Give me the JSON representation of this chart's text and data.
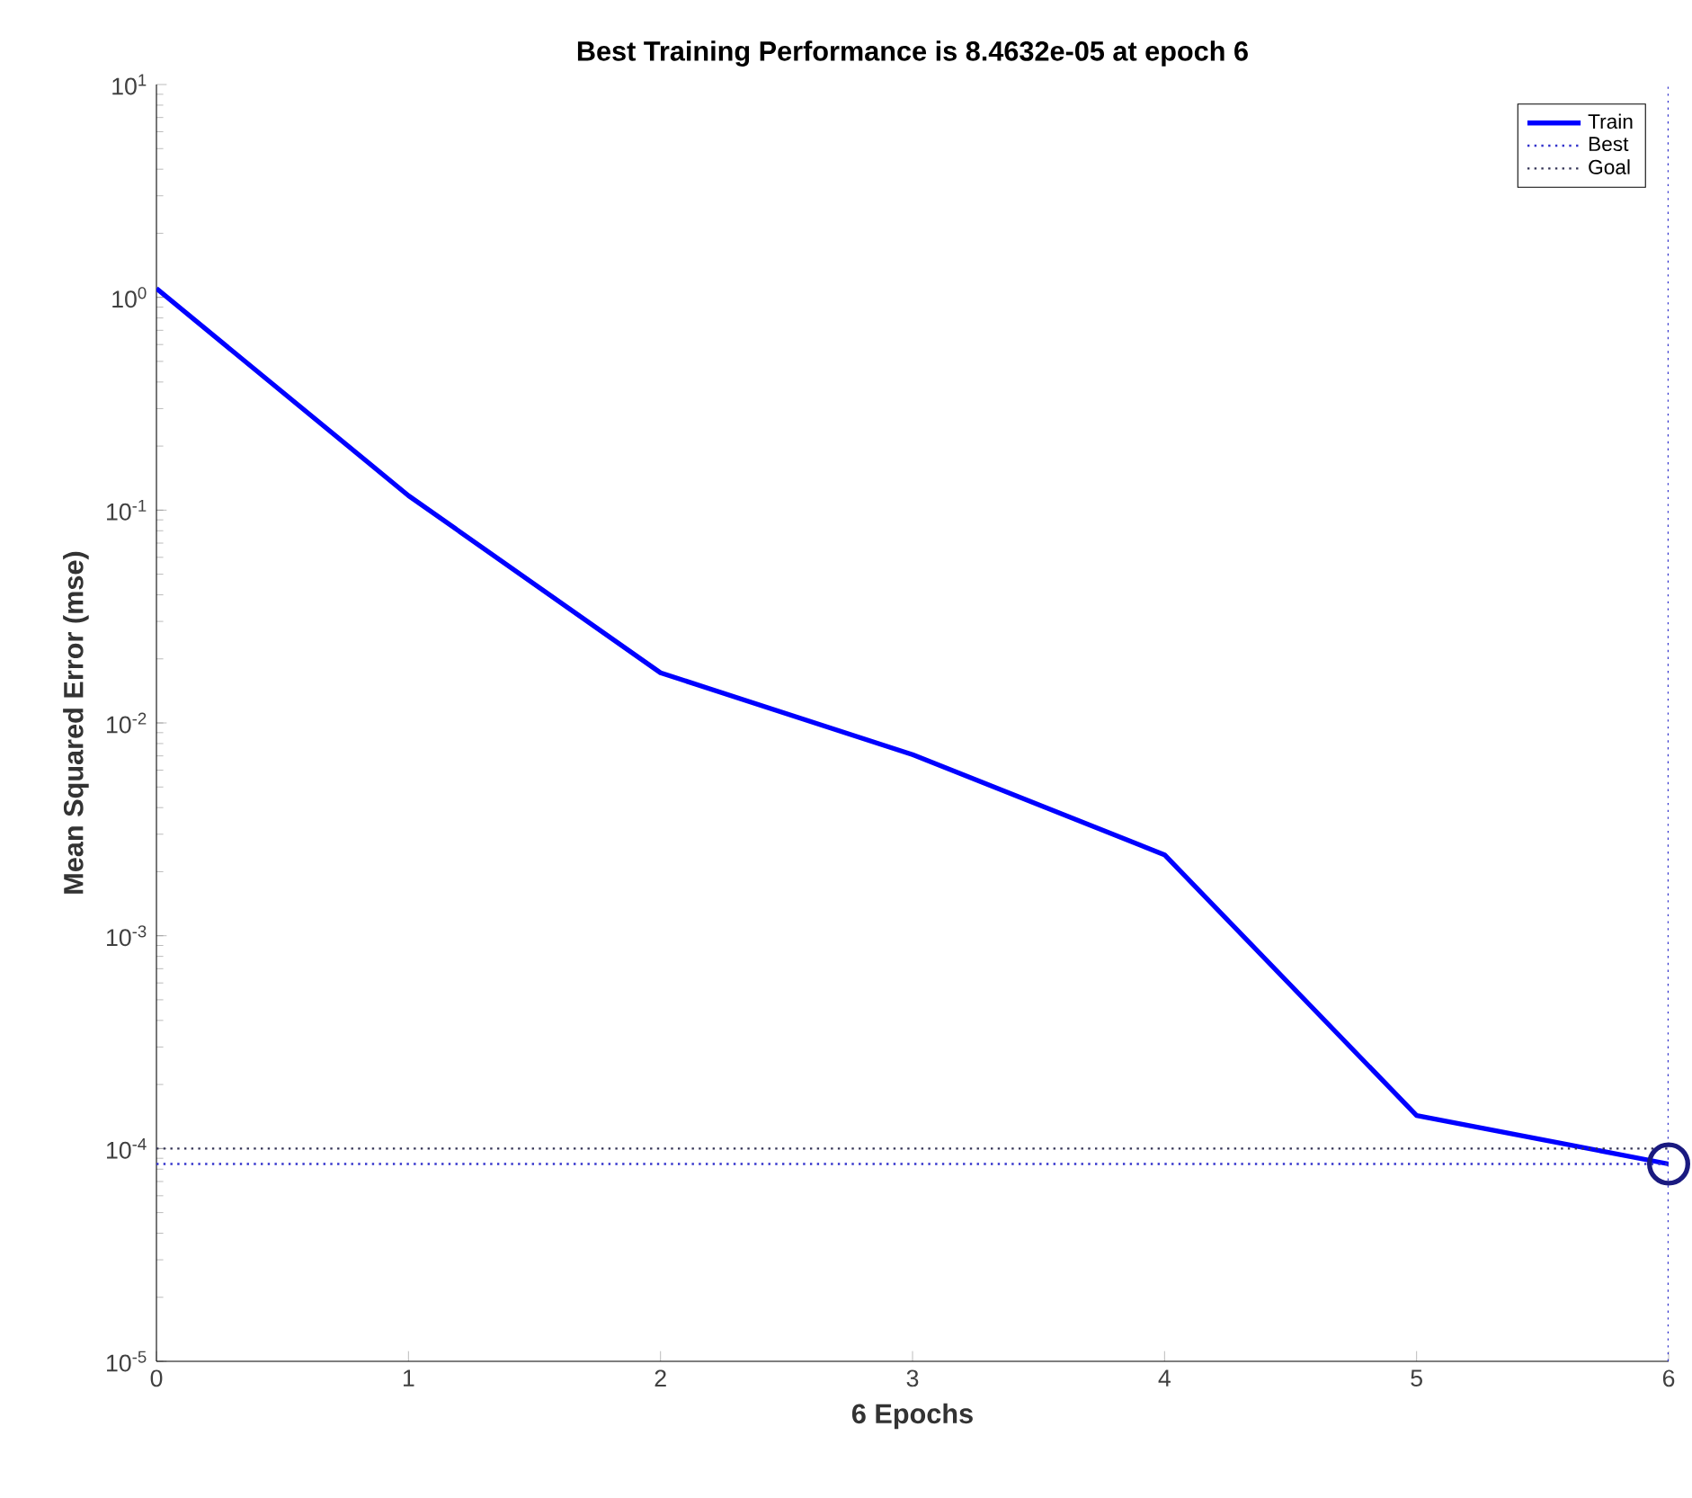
{
  "chart_data": {
    "type": "line",
    "title": "Best Training Performance is 8.4632e-05 at epoch 6",
    "xlabel": "6 Epochs",
    "ylabel": "Mean Squared Error  (mse)",
    "log": "y",
    "xlim": [
      0,
      6
    ],
    "ylim": [
      1e-05,
      10
    ],
    "xticks": [
      0,
      1,
      2,
      3,
      4,
      5,
      6
    ],
    "yticks": [
      {
        "value": 1e-05,
        "label": "10$^{-5}$"
      },
      {
        "value": 0.0001,
        "label": "10$^{-4}$"
      },
      {
        "value": 0.001,
        "label": "10$^{-3}$"
      },
      {
        "value": 0.01,
        "label": "10$^{-2}$"
      },
      {
        "value": 0.1,
        "label": "10$^{-1}$"
      },
      {
        "value": 1,
        "label": "10$^{0}$"
      },
      {
        "value": 10,
        "label": "10$^{1}$"
      }
    ],
    "legend": "top right",
    "grid": false,
    "series": [
      {
        "name": "Train",
        "color": "#0000ff",
        "x": [
          0,
          1,
          2,
          3,
          4,
          5,
          6
        ],
        "values": [
          1.1,
          0.117,
          0.0172,
          0.0071,
          0.0024,
          0.000143,
          8.4632e-05
        ]
      },
      {
        "type": "scatter",
        "marker": "circle",
        "color": "#1a1a80",
        "x": [
          6
        ],
        "values": [
          8.4632e-05
        ]
      }
    ],
    "ref_lines": [
      {
        "axis": "x",
        "value": 6,
        "label": "Best",
        "color": "#3333cc",
        "line_style": "dotted"
      },
      {
        "axis": "y",
        "value": 0.0001,
        "label": "Goal",
        "color": "#333355",
        "line_style": "dotted"
      },
      {
        "axis": "y",
        "value": 8.4632e-05,
        "color": "#3333cc",
        "line_style": "dotted"
      }
    ]
  }
}
